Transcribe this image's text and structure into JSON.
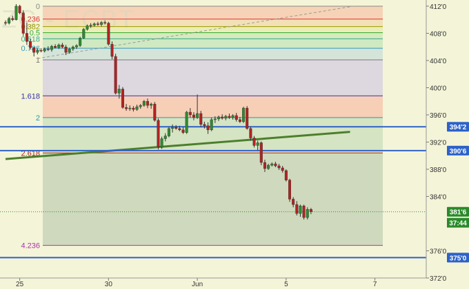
{
  "chart_data": {
    "type": "candlestick",
    "watermark": "ZC - ECBT",
    "y_axis": {
      "min": 372,
      "max": 412.5,
      "ticks": [
        "412'0",
        "408'0",
        "404'0",
        "400'0",
        "396'0",
        "392'0",
        "388'0",
        "384'0",
        "376'0",
        "372'0"
      ],
      "tick_values": [
        412,
        408,
        404,
        400,
        396,
        392,
        388,
        384,
        376,
        372
      ]
    },
    "x_axis": {
      "ticks": [
        {
          "label": "25",
          "idx": 4
        },
        {
          "label": "30",
          "idx": 29
        },
        {
          "label": "Jun",
          "idx": 54
        },
        {
          "label": "5",
          "idx": 79
        },
        {
          "label": "7",
          "idx": 104
        }
      ]
    },
    "fib_levels": [
      {
        "label": "0",
        "value": 412.0,
        "color": "#888888"
      },
      {
        "label": "0.236",
        "value": 410.1,
        "color": "#dd3333"
      },
      {
        "label": "0.382",
        "value": 409.0,
        "color": "#999900"
      },
      {
        "label": "0.5",
        "value": 408.1,
        "color": "#33aa33"
      },
      {
        "label": "0.618",
        "value": 407.2,
        "color": "#33aa88"
      },
      {
        "label": "0.786",
        "value": 405.8,
        "color": "#3399bb"
      },
      {
        "label": "1",
        "value": 404.1,
        "color": "#777777"
      },
      {
        "label": "1.618",
        "value": 398.8,
        "color": "#3333aa"
      },
      {
        "label": "2",
        "value": 395.6,
        "color": "#2299aa"
      },
      {
        "label": "2.618",
        "value": 390.4,
        "color": "#aa2222"
      },
      {
        "label": "4.236",
        "value": 376.8,
        "color": "#aa33aa"
      }
    ],
    "fib_band_colors": [
      "#f6ccb0",
      "#f2dcb0",
      "#e8ecb0",
      "#d0e8b8",
      "#c8e6c0",
      "#cfe0d8",
      "#d8d2e0",
      "#f6c8b0",
      "#cfe0c0",
      "#c8d4b8"
    ],
    "horizontal_lines": [
      {
        "label": "394'2",
        "value": 394.25
      },
      {
        "label": "390'6",
        "value": 390.75
      },
      {
        "label": "375'0",
        "value": 375.0
      }
    ],
    "current_price": {
      "label": "381'6",
      "value": 381.75
    },
    "timer": "37:44",
    "trend_lines": [
      {
        "from_idx": 0,
        "from_val": 389.5,
        "to_idx": 97,
        "to_val": 393.5,
        "color": "#4b7f2c",
        "style": "solid"
      },
      {
        "from_idx": 9,
        "from_val": 404.3,
        "to_idx": 98,
        "to_val": 412.0,
        "color": "#999999",
        "style": "dashed"
      }
    ],
    "candles": [
      [
        409.6,
        409.9,
        409.2,
        409.5
      ],
      [
        409.5,
        410.4,
        409.3,
        410.2
      ],
      [
        410.2,
        410.6,
        409.8,
        410.0
      ],
      [
        410.0,
        412.3,
        409.9,
        412.0
      ],
      [
        412.0,
        412.2,
        410.8,
        411.0
      ],
      [
        411.0,
        411.4,
        407.6,
        408.0
      ],
      [
        408.0,
        409.6,
        406.3,
        406.8
      ],
      [
        406.8,
        407.2,
        405.6,
        405.9
      ],
      [
        405.9,
        406.0,
        404.6,
        405.2
      ],
      [
        405.2,
        405.8,
        404.9,
        405.5
      ],
      [
        405.5,
        405.8,
        405.2,
        405.4
      ],
      [
        405.4,
        405.9,
        405.2,
        405.7
      ],
      [
        405.7,
        406.1,
        405.4,
        405.6
      ],
      [
        405.6,
        406.3,
        405.3,
        406.1
      ],
      [
        406.1,
        406.4,
        405.8,
        405.9
      ],
      [
        405.9,
        406.5,
        405.7,
        406.3
      ],
      [
        406.3,
        406.6,
        405.8,
        406.0
      ],
      [
        406.0,
        406.3,
        404.8,
        405.2
      ],
      [
        405.2,
        405.9,
        405.0,
        405.7
      ],
      [
        405.7,
        406.2,
        405.4,
        406.0
      ],
      [
        406.0,
        406.4,
        405.7,
        406.2
      ],
      [
        406.2,
        407.5,
        406.0,
        407.3
      ],
      [
        407.3,
        408.8,
        407.2,
        408.6
      ],
      [
        408.6,
        409.3,
        408.4,
        409.1
      ],
      [
        409.1,
        409.5,
        408.8,
        409.2
      ],
      [
        409.2,
        409.6,
        409.0,
        409.4
      ],
      [
        409.4,
        409.7,
        409.1,
        409.3
      ],
      [
        409.3,
        409.8,
        409.0,
        409.6
      ],
      [
        409.6,
        409.9,
        409.3,
        409.5
      ],
      [
        409.5,
        409.7,
        406.2,
        406.4
      ],
      [
        406.4,
        406.8,
        404.2,
        404.6
      ],
      [
        404.6,
        405.0,
        399.0,
        399.2
      ],
      [
        399.2,
        400.4,
        398.4,
        399.8
      ],
      [
        399.8,
        400.1,
        396.9,
        397.1
      ],
      [
        397.1,
        397.6,
        396.6,
        396.9
      ],
      [
        396.9,
        397.4,
        396.6,
        397.0
      ],
      [
        397.0,
        397.3,
        396.5,
        396.8
      ],
      [
        396.8,
        397.5,
        396.6,
        397.2
      ],
      [
        397.2,
        397.6,
        396.9,
        397.4
      ],
      [
        397.4,
        398.2,
        397.2,
        398.0
      ],
      [
        398.0,
        398.4,
        397.0,
        397.4
      ],
      [
        397.4,
        397.8,
        396.9,
        397.6
      ],
      [
        397.6,
        397.9,
        395.0,
        395.2
      ],
      [
        395.2,
        395.5,
        390.9,
        391.3
      ],
      [
        391.3,
        392.8,
        391.0,
        392.5
      ],
      [
        392.5,
        393.3,
        392.1,
        392.9
      ],
      [
        392.9,
        394.2,
        392.7,
        394.0
      ],
      [
        394.0,
        394.6,
        393.4,
        394.2
      ],
      [
        394.2,
        394.5,
        393.8,
        394.0
      ],
      [
        394.0,
        394.4,
        393.6,
        393.8
      ],
      [
        393.8,
        394.2,
        393.2,
        393.4
      ],
      [
        393.4,
        396.6,
        393.2,
        396.4
      ],
      [
        396.4,
        397.0,
        395.6,
        396.0
      ],
      [
        396.0,
        396.4,
        395.2,
        395.6
      ],
      [
        395.6,
        399.0,
        395.4,
        396.2
      ],
      [
        396.2,
        396.6,
        394.2,
        394.6
      ],
      [
        394.6,
        395.0,
        394.0,
        394.4
      ],
      [
        394.4,
        394.9,
        393.2,
        393.8
      ],
      [
        393.8,
        395.6,
        393.6,
        395.3
      ],
      [
        395.3,
        395.8,
        394.8,
        395.4
      ],
      [
        395.4,
        395.9,
        395.1,
        395.7
      ],
      [
        395.7,
        396.1,
        395.3,
        395.5
      ],
      [
        395.5,
        396.0,
        395.2,
        395.8
      ],
      [
        395.8,
        396.2,
        395.4,
        395.6
      ],
      [
        395.6,
        396.1,
        395.3,
        395.9
      ],
      [
        395.9,
        396.3,
        395.0,
        395.3
      ],
      [
        395.3,
        395.7,
        394.8,
        395.0
      ],
      [
        395.0,
        397.2,
        394.8,
        397.0
      ],
      [
        397.0,
        397.3,
        393.8,
        394.0
      ],
      [
        394.0,
        394.3,
        392.2,
        392.6
      ],
      [
        392.6,
        392.9,
        391.2,
        391.5
      ],
      [
        391.5,
        392.2,
        390.8,
        391.9
      ],
      [
        391.9,
        392.1,
        388.6,
        389.0
      ],
      [
        389.0,
        389.4,
        387.6,
        388.1
      ],
      [
        388.1,
        388.8,
        387.9,
        388.6
      ],
      [
        388.6,
        389.0,
        388.4,
        388.8
      ],
      [
        388.8,
        389.1,
        388.3,
        388.5
      ],
      [
        388.5,
        388.8,
        387.9,
        388.2
      ],
      [
        388.2,
        388.5,
        387.5,
        387.8
      ],
      [
        387.8,
        388.0,
        386.2,
        386.4
      ],
      [
        386.4,
        386.6,
        383.2,
        383.6
      ],
      [
        383.6,
        383.9,
        382.4,
        382.8
      ],
      [
        382.8,
        383.3,
        381.2,
        381.5
      ],
      [
        381.5,
        382.8,
        381.0,
        382.6
      ],
      [
        382.6,
        382.8,
        380.6,
        380.9
      ],
      [
        380.9,
        382.4,
        380.6,
        382.1
      ],
      [
        382.1,
        382.3,
        381.4,
        381.75
      ]
    ]
  }
}
